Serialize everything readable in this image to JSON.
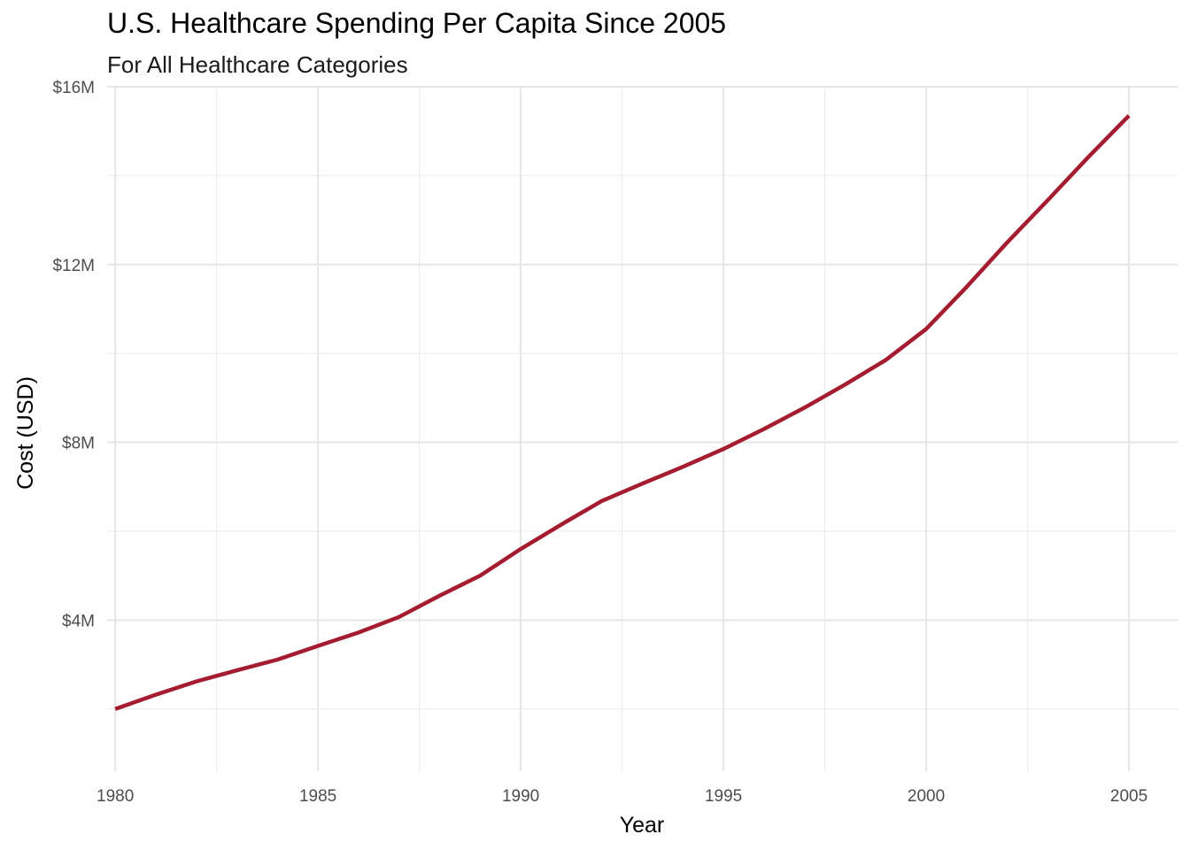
{
  "chart_data": {
    "type": "line",
    "title": "U.S. Healthcare Spending Per Capita Since 2005",
    "subtitle": "For All Healthcare Categories",
    "xlabel": "Year",
    "ylabel": "Cost (USD)",
    "xlim": [
      1979.8,
      2006.2
    ],
    "ylim": [
      0.6,
      16.0
    ],
    "y_unit": "millions USD",
    "x_ticks": [
      1980,
      1985,
      1990,
      1995,
      2000,
      2005
    ],
    "y_ticks": [
      4,
      8,
      12,
      16
    ],
    "y_tick_labels": [
      "$4M",
      "$8M",
      "$12M",
      "$16M"
    ],
    "grid": true,
    "series": [
      {
        "color": "#a51c30",
        "x": [
          1980,
          1981,
          1982,
          1983,
          1984,
          1985,
          1986,
          1987,
          1988,
          1989,
          1990,
          1991,
          1992,
          1993,
          1994,
          1995,
          1996,
          1997,
          1998,
          1999,
          2000,
          2001,
          2002,
          2003,
          2004,
          2005
        ],
        "values": [
          2.0,
          2.32,
          2.62,
          2.87,
          3.11,
          3.42,
          3.72,
          4.07,
          4.55,
          5.0,
          5.6,
          6.15,
          6.68,
          7.07,
          7.45,
          7.85,
          8.3,
          8.78,
          9.3,
          9.85,
          10.55,
          11.5,
          12.5,
          13.45,
          14.42,
          15.35
        ]
      }
    ]
  }
}
